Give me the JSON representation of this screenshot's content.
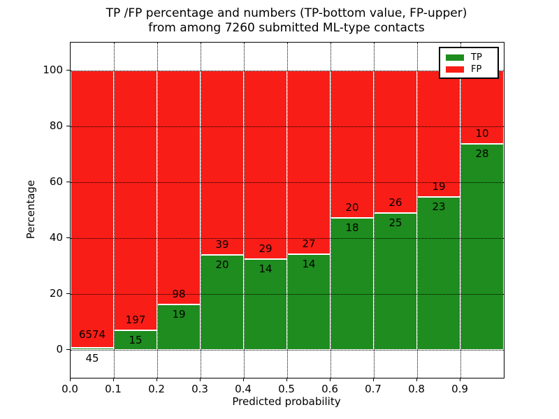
{
  "title": {
    "line1": "TP /FP percentage and numbers (TP-bottom value, FP-upper)",
    "line2": "from among 7260 submitted ML-type contacts"
  },
  "axes": {
    "xlabel": "Predicted probability",
    "ylabel": "Percentage"
  },
  "legend": {
    "position": "upper-right",
    "items": [
      {
        "label": "TP",
        "color": "#1e8c1e"
      },
      {
        "label": "FP",
        "color": "#f91d17"
      }
    ]
  },
  "colors": {
    "tp_green": "#1e8c1e",
    "fp_red": "#f91d17",
    "bar_edge": "#ffffff",
    "grid": "#000000",
    "text": "#000000",
    "background": "#ffffff"
  },
  "chart_data": {
    "type": "bar",
    "variant": "stacked-percentage",
    "title": "TP /FP percentage and numbers (TP-bottom value, FP-upper) from among 7260 submitted ML-type contacts",
    "xlabel": "Predicted probability",
    "ylabel": "Percentage",
    "total_contacts": 7260,
    "bins": [
      "0.0-0.1",
      "0.1-0.2",
      "0.2-0.3",
      "0.3-0.4",
      "0.4-0.5",
      "0.5-0.6",
      "0.6-0.7",
      "0.7-0.8",
      "0.8-0.9",
      "0.9-1.0"
    ],
    "series": [
      {
        "name": "TP",
        "color": "#1e8c1e",
        "counts": [
          45,
          15,
          19,
          20,
          14,
          14,
          18,
          25,
          23,
          28
        ]
      },
      {
        "name": "FP",
        "color": "#f91d17",
        "counts": [
          6574,
          197,
          98,
          39,
          29,
          27,
          20,
          26,
          19,
          10
        ]
      }
    ],
    "tp_percent_by_bin": [
      0.7,
      7.1,
      16.2,
      33.9,
      32.6,
      34.1,
      47.4,
      49.0,
      54.8,
      73.7
    ],
    "xlim": [
      0,
      1
    ],
    "ylim": [
      -10,
      110
    ],
    "xticks": [
      0.0,
      0.1,
      0.2,
      0.3,
      0.4,
      0.5,
      0.6,
      0.7,
      0.8,
      0.9
    ],
    "xtick_labels": [
      "0.0",
      "0.1",
      "0.2",
      "0.3",
      "0.4",
      "0.5",
      "0.6",
      "0.7",
      "0.8",
      "0.9"
    ],
    "yticks": [
      0,
      20,
      40,
      60,
      80,
      100
    ],
    "ytick_labels": [
      "0",
      "20",
      "40",
      "60",
      "80",
      "100"
    ],
    "grid": true,
    "grid_style": "dotted",
    "legend_position": "upper right"
  }
}
